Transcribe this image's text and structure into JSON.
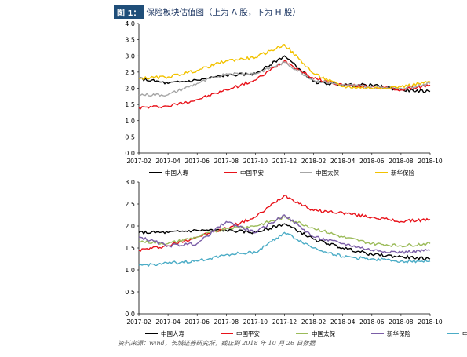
{
  "figure": {
    "tag": "图 1：",
    "title": "保险板块估值图（上为 A 股，下为 H 股）"
  },
  "source": "资料来源：wind，长城证券研究所，截止到 2018 年 10 月 26 日数据",
  "chart_data": [
    {
      "type": "line",
      "title": "",
      "x": [
        "2017-02",
        "2017-04",
        "2017-06",
        "2017-08",
        "2017-10",
        "2017-12",
        "2018-02",
        "2018-04",
        "2018-06",
        "2018-08",
        "2018-10"
      ],
      "ylim": [
        0,
        4.0
      ],
      "yticks": [
        "0.0",
        "0.5",
        "1.0",
        "1.5",
        "2.0",
        "2.5",
        "3.0",
        "3.5",
        "4.0"
      ],
      "legend_position": "bottom",
      "series": [
        {
          "name": "中国人寿",
          "color": "#000000",
          "values": [
            2.3,
            2.15,
            2.25,
            2.4,
            2.45,
            3.0,
            2.2,
            2.1,
            2.1,
            1.95,
            1.9
          ]
        },
        {
          "name": "中国平安",
          "color": "#e8121a",
          "values": [
            1.4,
            1.45,
            1.65,
            1.95,
            2.25,
            2.85,
            2.3,
            2.1,
            2.05,
            1.95,
            2.1
          ]
        },
        {
          "name": "中国太保",
          "color": "#a6a6a6",
          "values": [
            1.8,
            1.8,
            2.15,
            2.45,
            2.45,
            2.8,
            2.25,
            2.1,
            2.05,
            2.0,
            2.15
          ]
        },
        {
          "name": "新华保险",
          "color": "#f2c200",
          "values": [
            2.3,
            2.35,
            2.55,
            2.85,
            2.95,
            3.35,
            2.45,
            2.05,
            2.0,
            2.05,
            2.2
          ]
        }
      ]
    },
    {
      "type": "line",
      "title": "",
      "x": [
        "2017-02",
        "2017-04",
        "2017-06",
        "2017-08",
        "2017-10",
        "2017-12",
        "2018-02",
        "2018-04",
        "2018-06",
        "2018-08",
        "2018-10"
      ],
      "ylim": [
        0,
        3.0
      ],
      "yticks": [
        "0.0",
        "0.5",
        "1.0",
        "1.5",
        "2.0",
        "2.5",
        "3.0"
      ],
      "legend_position": "bottom",
      "series": [
        {
          "name": "中国人寿",
          "color": "#000000",
          "values": [
            1.85,
            1.85,
            1.9,
            1.9,
            1.85,
            2.05,
            1.7,
            1.5,
            1.35,
            1.3,
            1.25
          ]
        },
        {
          "name": "中国平安",
          "color": "#e8121a",
          "values": [
            1.45,
            1.55,
            1.75,
            1.95,
            2.2,
            2.7,
            2.35,
            2.3,
            2.2,
            2.1,
            2.15
          ]
        },
        {
          "name": "中国太保",
          "color": "#9bbb59",
          "values": [
            1.65,
            1.6,
            1.75,
            1.95,
            2.0,
            2.2,
            1.95,
            1.75,
            1.6,
            1.55,
            1.6
          ]
        },
        {
          "name": "新华保险",
          "color": "#7b5ea7",
          "values": [
            1.75,
            1.55,
            1.6,
            2.1,
            1.85,
            2.25,
            1.75,
            1.6,
            1.45,
            1.4,
            1.45
          ]
        },
        {
          "name": "中国太平",
          "color": "#4bacc6",
          "values": [
            1.1,
            1.15,
            1.2,
            1.35,
            1.4,
            1.85,
            1.5,
            1.3,
            1.25,
            1.2,
            1.2
          ]
        }
      ]
    }
  ]
}
